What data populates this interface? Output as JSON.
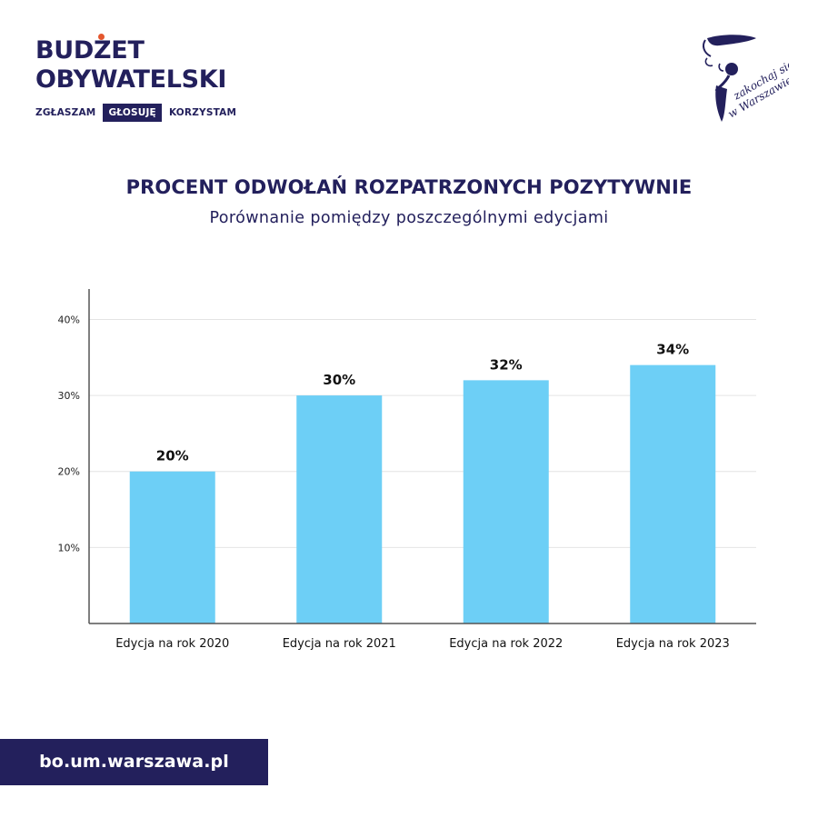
{
  "brand": {
    "line1": "BUDŻET",
    "line2": "OBYWATELSKI",
    "tagline": [
      "ZGŁASZAM",
      "GŁOSUJĘ",
      "KORZYSTAM"
    ],
    "active_tag_index": 1
  },
  "city_logo": {
    "line1": "zakochaj się",
    "line2": "w Warszawie"
  },
  "footer": {
    "url": "bo.um.warszawa.pl"
  },
  "colors": {
    "navy": "#23205c",
    "bar": "#6dcff6",
    "accent": "#e4572e",
    "grid": "#e4e4e4"
  },
  "chart_data": {
    "type": "bar",
    "title": "PROCENT ODWOŁAŃ ROZPATRZONYCH POZYTYWNIE",
    "subtitle": "Porównanie pomiędzy poszczególnymi edycjami",
    "xlabel": "",
    "ylabel": "",
    "categories": [
      "Edycja na rok 2020",
      "Edycja na rok 2021",
      "Edycja na rok 2022",
      "Edycja na rok 2023"
    ],
    "values": [
      20,
      30,
      32,
      34
    ],
    "data_labels": [
      "20%",
      "30%",
      "32%",
      "34%"
    ],
    "yticks": [
      10,
      20,
      30,
      40
    ],
    "ytick_labels": [
      "10%",
      "20%",
      "30%",
      "40%"
    ],
    "ylim": [
      0,
      44
    ],
    "grid": true,
    "legend": "none"
  }
}
